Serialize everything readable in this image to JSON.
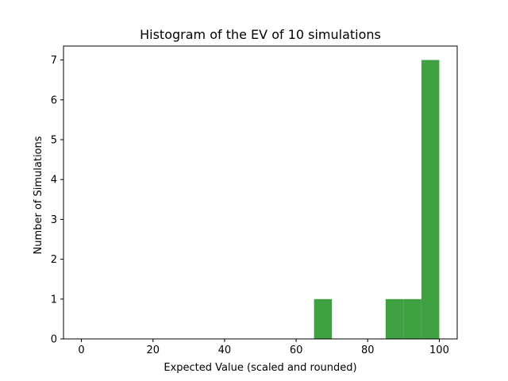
{
  "chart_data": {
    "type": "bar",
    "title": "Histogram of the EV of 10 simulations",
    "xlabel": "Expected Value (scaled and rounded)",
    "ylabel": "Number of Simulations",
    "xlim": [
      -5,
      105
    ],
    "ylim": [
      0,
      7.35
    ],
    "xticks": [
      0,
      20,
      40,
      60,
      80,
      100
    ],
    "yticks": [
      0,
      1,
      2,
      3,
      4,
      5,
      6,
      7
    ],
    "bin_width": 5,
    "bins": [
      {
        "start": 0,
        "end": 5,
        "count": 0
      },
      {
        "start": 5,
        "end": 10,
        "count": 0
      },
      {
        "start": 10,
        "end": 15,
        "count": 0
      },
      {
        "start": 15,
        "end": 20,
        "count": 0
      },
      {
        "start": 20,
        "end": 25,
        "count": 0
      },
      {
        "start": 25,
        "end": 30,
        "count": 0
      },
      {
        "start": 30,
        "end": 35,
        "count": 0
      },
      {
        "start": 35,
        "end": 40,
        "count": 0
      },
      {
        "start": 40,
        "end": 45,
        "count": 0
      },
      {
        "start": 45,
        "end": 50,
        "count": 0
      },
      {
        "start": 50,
        "end": 55,
        "count": 0
      },
      {
        "start": 55,
        "end": 60,
        "count": 0
      },
      {
        "start": 60,
        "end": 65,
        "count": 0
      },
      {
        "start": 65,
        "end": 70,
        "count": 1
      },
      {
        "start": 70,
        "end": 75,
        "count": 0
      },
      {
        "start": 75,
        "end": 80,
        "count": 0
      },
      {
        "start": 80,
        "end": 85,
        "count": 0
      },
      {
        "start": 85,
        "end": 90,
        "count": 1
      },
      {
        "start": 90,
        "end": 95,
        "count": 1
      },
      {
        "start": 95,
        "end": 100,
        "count": 7
      }
    ],
    "bar_color": "#3fa142",
    "grid": false,
    "legend": "none"
  }
}
